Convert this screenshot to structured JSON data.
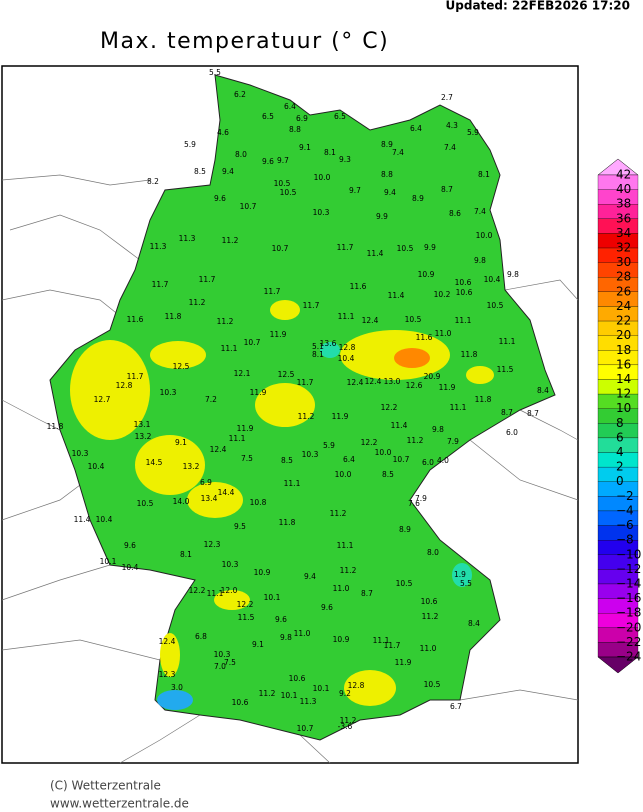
{
  "updated": "Updated:  22FEB2026  17:20",
  "title": "Max. temperatuur (° C)",
  "credit": "(C) Wetterzentrale",
  "website": "www.wetterzentrale.de",
  "stations": [
    "5.5",
    "6.2",
    "6.4",
    "6.5",
    "6.9",
    "6.5",
    "8.8",
    "4.6",
    "9.1",
    "5.9",
    "8.0",
    "9.6",
    "9.7",
    "8.1",
    "9.3",
    "8.9",
    "7.4",
    "6.4",
    "2.7",
    "4.3",
    "5.9",
    "7.4",
    "8.5",
    "9.4",
    "8.2",
    "10.0",
    "8.8",
    "8.1",
    "10.5",
    "10.5",
    "9.7",
    "9.4",
    "8.7",
    "9.6",
    "10.7",
    "10.3",
    "8.9",
    "8.6",
    "7.4",
    "9.9",
    "10.0",
    "11.3",
    "11.3",
    "11.2",
    "10.7",
    "11.7",
    "11.4",
    "10.5",
    "9.9",
    "9.8",
    "10.9",
    "10.4",
    "9.8",
    "10.6",
    "10.2",
    "10.6",
    "11.7",
    "11.7",
    "11.2",
    "11.7",
    "11.6",
    "11.4",
    "10.5",
    "11.6",
    "11.8",
    "11.2",
    "11.7",
    "11.1",
    "12.4",
    "10.5",
    "11.1",
    "11.0",
    "11.9",
    "10.7",
    "11.1",
    "13.6",
    "12.8",
    "11.6",
    "11.1",
    "5.1",
    "8.1",
    "10.4",
    "11.8",
    "12.5",
    "12.1",
    "12.5",
    "11.7",
    "20.9",
    "12.4",
    "12.4",
    "13.0",
    "12.6",
    "11.9",
    "11.5",
    "11.7",
    "12.8",
    "10.3",
    "11.9",
    "7.2",
    "12.7",
    "11.8",
    "8.4",
    "12.2",
    "11.1",
    "8.7",
    "8.7",
    "11.2",
    "11.9",
    "13.1",
    "11.8",
    "11.4",
    "9.8",
    "11.9",
    "13.2",
    "9.1",
    "11.1",
    "12.2",
    "11.2",
    "7.9",
    "6.0",
    "5.9",
    "10.3",
    "12.4",
    "10.0",
    "10.7",
    "7.5",
    "8.5",
    "10.3",
    "6.4",
    "6.0",
    "4.0",
    "10.4",
    "14.5",
    "13.2",
    "10.0",
    "8.5",
    "6.9",
    "11.1",
    "7.9",
    "14.0",
    "13.4",
    "14.4",
    "10.5",
    "10.8",
    "7.6",
    "11.2",
    "11.4",
    "10.4",
    "9.5",
    "11.8",
    "8.9",
    "9.6",
    "12.3",
    "11.1",
    "8.0",
    "8.1",
    "10.1",
    "10.3",
    "10.9",
    "10.4",
    "9.4",
    "11.2",
    "10.5",
    "1.9",
    "5.5",
    "12.2",
    "11.1",
    "12.0",
    "10.1",
    "11.0",
    "8.7",
    "10.6",
    "12.2",
    "9.6",
    "11.5",
    "9.6",
    "11.2",
    "8.4",
    "6.8",
    "11.0",
    "9.8",
    "10.9",
    "11.1",
    "11.7",
    "12.4",
    "9.1",
    "11.0",
    "10.3",
    "7.5",
    "7.0",
    "12.3",
    "11.9",
    "3.0",
    "10.6",
    "10.1",
    "12.8",
    "9.2",
    "10.5",
    "11.2",
    "10.1",
    "11.3",
    "10.6",
    "6.7",
    "11.2",
    "-3.6",
    "10.7"
  ],
  "colorbar": {
    "labels": [
      "42",
      "40",
      "38",
      "36",
      "34",
      "32",
      "30",
      "28",
      "26",
      "24",
      "22",
      "20",
      "18",
      "16",
      "14",
      "12",
      "10",
      "8",
      "6",
      "4",
      "2",
      "0",
      "−2",
      "−4",
      "−6",
      "−8",
      "−10",
      "−12",
      "−14",
      "−16",
      "−18",
      "−20",
      "−22",
      "−24"
    ],
    "colors": [
      "#ffaaff",
      "#ff77ee",
      "#ff44cc",
      "#ff2299",
      "#ff1155",
      "#ee0000",
      "#ff2200",
      "#ff4400",
      "#ff6600",
      "#ff8800",
      "#ffaa00",
      "#ffcc00",
      "#ffdd00",
      "#ffee00",
      "#ffff00",
      "#ccff00",
      "#55dd22",
      "#33cc33",
      "#22cc55",
      "#22dd99",
      "#00e5cc",
      "#00ccee",
      "#00aaff",
      "#0088ff",
      "#0066ff",
      "#0033ee",
      "#2200ee",
      "#4400ee",
      "#6600ee",
      "#9900ee",
      "#cc00ee",
      "#ee00dd",
      "#cc00aa",
      "#990088",
      "#660066"
    ]
  }
}
